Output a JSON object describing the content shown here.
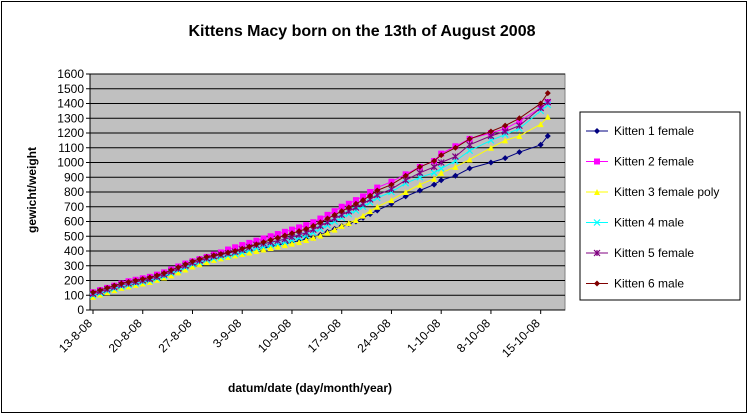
{
  "chart_data": {
    "type": "line",
    "title": "Kittens Macy born on the 13th of August 2008",
    "xlabel": "datum/date (day/month/year)",
    "ylabel": "gewicht/weight",
    "ylim": [
      0,
      1600
    ],
    "yticks": [
      0,
      100,
      200,
      300,
      400,
      500,
      600,
      700,
      800,
      900,
      1000,
      1100,
      1200,
      1300,
      1400,
      1500,
      1600
    ],
    "xticks": [
      {
        "label": "13-8-08",
        "day": 0
      },
      {
        "label": "20-8-08",
        "day": 7
      },
      {
        "label": "27-8-08",
        "day": 14
      },
      {
        "label": "3-9-08",
        "day": 21
      },
      {
        "label": "10-9-08",
        "day": 28
      },
      {
        "label": "17-9-08",
        "day": 35
      },
      {
        "label": "24-9-08",
        "day": 42
      },
      {
        "label": "1-10-08",
        "day": 49
      },
      {
        "label": "8-10-08",
        "day": 56
      },
      {
        "label": "15-10-08",
        "day": 63
      }
    ],
    "plot_background": "#c0c0c0",
    "grid": true,
    "legend_position": "right",
    "series": [
      {
        "name": "Kitten 1 female",
        "color": "#000080",
        "marker": "diamond",
        "days": [
          0,
          1,
          2,
          3,
          4,
          5,
          6,
          7,
          8,
          9,
          10,
          11,
          12,
          13,
          14,
          15,
          16,
          17,
          18,
          19,
          20,
          21,
          22,
          23,
          24,
          25,
          26,
          27,
          28,
          29,
          30,
          31,
          32,
          33,
          34,
          35,
          36,
          37,
          38,
          39,
          40,
          42,
          44,
          46,
          48,
          49,
          51,
          53,
          56,
          58,
          60,
          63,
          64
        ],
        "values": [
          95,
          110,
          125,
          140,
          155,
          165,
          175,
          185,
          195,
          210,
          225,
          240,
          260,
          280,
          300,
          315,
          330,
          345,
          355,
          365,
          375,
          385,
          395,
          405,
          420,
          430,
          440,
          450,
          460,
          470,
          480,
          490,
          510,
          530,
          550,
          570,
          585,
          600,
          625,
          650,
          675,
          720,
          770,
          810,
          850,
          880,
          910,
          960,
          1000,
          1030,
          1070,
          1120,
          1180
        ]
      },
      {
        "name": "Kitten 2 female",
        "color": "#ff00ff",
        "marker": "square",
        "days": [
          0,
          1,
          2,
          3,
          4,
          5,
          6,
          7,
          8,
          9,
          10,
          11,
          12,
          13,
          14,
          15,
          16,
          17,
          18,
          19,
          20,
          21,
          22,
          23,
          24,
          25,
          26,
          27,
          28,
          29,
          30,
          31,
          32,
          33,
          34,
          35,
          36,
          37,
          38,
          39,
          40,
          42,
          44,
          46,
          48,
          49,
          51,
          53,
          56,
          58,
          60,
          63,
          64
        ],
        "values": [
          120,
          135,
          150,
          165,
          180,
          195,
          205,
          215,
          225,
          240,
          255,
          275,
          295,
          315,
          330,
          345,
          360,
          375,
          390,
          410,
          425,
          440,
          455,
          470,
          485,
          500,
          515,
          530,
          545,
          560,
          575,
          595,
          620,
          645,
          670,
          700,
          720,
          745,
          770,
          800,
          830,
          870,
          920,
          970,
          1010,
          1060,
          1110,
          1160,
          1200,
          1230,
          1280,
          1370,
          1410
        ]
      },
      {
        "name": "Kitten 3 female poly",
        "color": "#ffff00",
        "marker": "triangle",
        "days": [
          0,
          1,
          2,
          3,
          4,
          5,
          6,
          7,
          8,
          9,
          10,
          11,
          12,
          13,
          14,
          15,
          16,
          17,
          18,
          19,
          20,
          21,
          22,
          23,
          24,
          25,
          26,
          27,
          28,
          29,
          30,
          31,
          32,
          33,
          34,
          35,
          36,
          37,
          38,
          39,
          40,
          42,
          44,
          46,
          48,
          49,
          51,
          53,
          56,
          58,
          60,
          63,
          64
        ],
        "values": [
          90,
          105,
          120,
          135,
          150,
          160,
          170,
          180,
          190,
          205,
          220,
          235,
          255,
          275,
          295,
          310,
          325,
          340,
          350,
          360,
          370,
          380,
          390,
          400,
          410,
          420,
          430,
          440,
          450,
          460,
          475,
          490,
          505,
          525,
          545,
          570,
          590,
          610,
          640,
          670,
          700,
          745,
          800,
          850,
          890,
          930,
          970,
          1020,
          1100,
          1150,
          1180,
          1260,
          1310
        ]
      },
      {
        "name": "Kitten 4 male",
        "color": "#00ffff",
        "marker": "x",
        "days": [
          0,
          1,
          2,
          3,
          4,
          5,
          6,
          7,
          8,
          9,
          10,
          11,
          12,
          13,
          14,
          15,
          16,
          17,
          18,
          19,
          20,
          21,
          22,
          23,
          24,
          25,
          26,
          27,
          28,
          29,
          30,
          31,
          32,
          33,
          34,
          35,
          36,
          37,
          38,
          39,
          40,
          42,
          44,
          46,
          48,
          49,
          51,
          53,
          56,
          58,
          60,
          63,
          64
        ],
        "values": [
          100,
          115,
          130,
          145,
          160,
          170,
          180,
          190,
          200,
          215,
          230,
          250,
          270,
          290,
          310,
          325,
          340,
          350,
          360,
          370,
          380,
          390,
          405,
          420,
          430,
          440,
          450,
          460,
          475,
          490,
          505,
          525,
          550,
          575,
          600,
          625,
          650,
          675,
          700,
          730,
          760,
          800,
          860,
          900,
          930,
          960,
          1010,
          1080,
          1150,
          1190,
          1230,
          1350,
          1390
        ]
      },
      {
        "name": "Kitten 5 female",
        "color": "#800080",
        "marker": "star",
        "days": [
          0,
          1,
          2,
          3,
          4,
          5,
          6,
          7,
          8,
          9,
          10,
          11,
          12,
          13,
          14,
          15,
          16,
          17,
          18,
          19,
          20,
          21,
          22,
          23,
          24,
          25,
          26,
          27,
          28,
          29,
          30,
          31,
          32,
          33,
          34,
          35,
          36,
          37,
          38,
          39,
          40,
          42,
          44,
          46,
          48,
          49,
          51,
          53,
          56,
          58,
          60,
          63,
          64
        ],
        "values": [
          110,
          125,
          140,
          155,
          170,
          180,
          190,
          200,
          210,
          225,
          240,
          260,
          280,
          300,
          320,
          335,
          350,
          365,
          375,
          385,
          395,
          410,
          425,
          440,
          450,
          460,
          470,
          480,
          495,
          510,
          525,
          545,
          570,
          595,
          620,
          645,
          670,
          695,
          720,
          750,
          780,
          820,
          880,
          930,
          970,
          1000,
          1040,
          1120,
          1180,
          1210,
          1250,
          1370,
          1410
        ]
      },
      {
        "name": "Kitten 6 male",
        "color": "#800000",
        "marker": "diamond",
        "days": [
          0,
          1,
          2,
          3,
          4,
          5,
          6,
          7,
          8,
          9,
          10,
          11,
          12,
          13,
          14,
          15,
          16,
          17,
          18,
          19,
          20,
          21,
          22,
          23,
          24,
          25,
          26,
          27,
          28,
          29,
          30,
          31,
          32,
          33,
          34,
          35,
          36,
          37,
          38,
          39,
          40,
          42,
          44,
          46,
          48,
          49,
          51,
          53,
          56,
          58,
          60,
          63,
          64
        ],
        "values": [
          120,
          135,
          150,
          165,
          180,
          190,
          200,
          210,
          220,
          235,
          250,
          270,
          290,
          310,
          330,
          345,
          360,
          370,
          380,
          390,
          400,
          415,
          430,
          445,
          460,
          475,
          490,
          505,
          520,
          535,
          550,
          570,
          595,
          620,
          645,
          670,
          695,
          720,
          745,
          775,
          810,
          850,
          910,
          970,
          1010,
          1050,
          1100,
          1160,
          1210,
          1250,
          1300,
          1400,
          1470
        ]
      }
    ]
  }
}
